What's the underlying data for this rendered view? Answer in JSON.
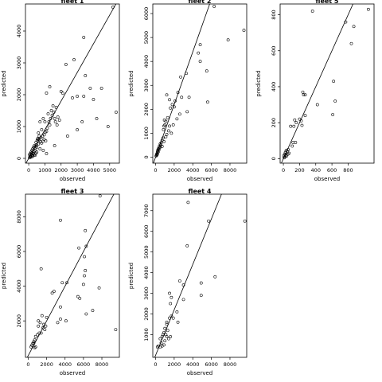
{
  "chart_data": [
    {
      "type": "scatter",
      "title": "fleet 1",
      "xlabel": "observed",
      "ylabel": "predicted",
      "xlim": [
        -200,
        5600
      ],
      "ylim": [
        -150,
        4850
      ],
      "xticks": [
        0,
        1000,
        2000,
        3000,
        4000,
        5000
      ],
      "yticks": [
        0,
        1000,
        2000,
        3000,
        4000
      ],
      "reference_line": {
        "slope": 0.9,
        "intercept": 0
      },
      "points": [
        [
          5200,
          4750
        ],
        [
          3400,
          3800
        ],
        [
          2800,
          3100
        ],
        [
          3500,
          2600
        ],
        [
          2300,
          2950
        ],
        [
          2000,
          2100
        ],
        [
          2100,
          2050
        ],
        [
          3800,
          2200
        ],
        [
          4500,
          2200
        ],
        [
          3000,
          1950
        ],
        [
          4000,
          1850
        ],
        [
          2700,
          1900
        ],
        [
          3400,
          1950
        ],
        [
          1300,
          2250
        ],
        [
          1100,
          2050
        ],
        [
          1500,
          1650
        ],
        [
          1400,
          1500
        ],
        [
          1200,
          1400
        ],
        [
          1800,
          1300
        ],
        [
          1600,
          1250
        ],
        [
          1000,
          1150
        ],
        [
          900,
          1250
        ],
        [
          700,
          1150
        ],
        [
          800,
          900
        ],
        [
          1100,
          850
        ],
        [
          600,
          800
        ],
        [
          1300,
          1050
        ],
        [
          1700,
          1600
        ],
        [
          1900,
          1200
        ],
        [
          3300,
          1150
        ],
        [
          4200,
          1250
        ],
        [
          3000,
          900
        ],
        [
          2400,
          700
        ],
        [
          4900,
          1000
        ],
        [
          5400,
          1450
        ],
        [
          1600,
          400
        ],
        [
          1100,
          150
        ],
        [
          900,
          250
        ],
        [
          700,
          300
        ],
        [
          500,
          200
        ],
        [
          400,
          100
        ],
        [
          300,
          150
        ],
        [
          200,
          100
        ],
        [
          100,
          50
        ],
        [
          50,
          20
        ],
        [
          150,
          200
        ],
        [
          250,
          300
        ],
        [
          350,
          400
        ],
        [
          450,
          500
        ],
        [
          550,
          600
        ],
        [
          650,
          700
        ],
        [
          750,
          650
        ],
        [
          850,
          700
        ],
        [
          950,
          600
        ],
        [
          1050,
          550
        ],
        [
          600,
          450
        ],
        [
          500,
          350
        ],
        [
          400,
          250
        ],
        [
          300,
          350
        ],
        [
          200,
          250
        ],
        [
          100,
          150
        ],
        [
          80,
          80
        ],
        [
          120,
          60
        ],
        [
          180,
          140
        ],
        [
          220,
          180
        ],
        [
          260,
          90
        ],
        [
          320,
          220
        ],
        [
          380,
          330
        ],
        [
          420,
          380
        ],
        [
          480,
          420
        ],
        [
          520,
          560
        ],
        [
          560,
          620
        ],
        [
          640,
          580
        ],
        [
          720,
          520
        ],
        [
          800,
          480
        ],
        [
          880,
          540
        ],
        [
          960,
          740
        ],
        [
          1020,
          820
        ],
        [
          1150,
          950
        ],
        [
          1250,
          1150
        ],
        [
          1350,
          1250
        ],
        [
          1450,
          1350
        ],
        [
          1550,
          1450
        ],
        [
          1650,
          1150
        ],
        [
          1750,
          1050
        ],
        [
          60,
          120
        ],
        [
          140,
          40
        ],
        [
          240,
          60
        ],
        [
          340,
          110
        ],
        [
          440,
          160
        ]
      ]
    },
    {
      "type": "scatter",
      "title": "fleet 2",
      "xlabel": "observed",
      "ylabel": "predicted",
      "xlim": [
        -300,
        9800
      ],
      "ylim": [
        -250,
        6400
      ],
      "xticks": [
        0,
        2000,
        4000,
        6000,
        8000
      ],
      "yticks": [
        0,
        1000,
        2000,
        3000,
        4000,
        5000,
        6000
      ],
      "reference_line": {
        "slope": 1.1,
        "intercept": 0
      },
      "points": [
        [
          6300,
          6300
        ],
        [
          9500,
          5300
        ],
        [
          7800,
          4900
        ],
        [
          4800,
          4700
        ],
        [
          4600,
          4350
        ],
        [
          4800,
          4000
        ],
        [
          5500,
          3600
        ],
        [
          3300,
          3500
        ],
        [
          2700,
          3350
        ],
        [
          2400,
          2700
        ],
        [
          3600,
          2500
        ],
        [
          2800,
          2500
        ],
        [
          2100,
          2350
        ],
        [
          1800,
          2200
        ],
        [
          1500,
          2400
        ],
        [
          1200,
          2600
        ],
        [
          2000,
          2100
        ],
        [
          1600,
          2050
        ],
        [
          3400,
          1900
        ],
        [
          2600,
          1800
        ],
        [
          1300,
          1650
        ],
        [
          1100,
          1500
        ],
        [
          900,
          1300
        ],
        [
          1000,
          1350
        ],
        [
          1500,
          1300
        ],
        [
          1400,
          1100
        ],
        [
          1200,
          950
        ],
        [
          1100,
          850
        ],
        [
          1700,
          1000
        ],
        [
          800,
          800
        ],
        [
          700,
          700
        ],
        [
          900,
          650
        ],
        [
          600,
          600
        ],
        [
          500,
          550
        ],
        [
          700,
          450
        ],
        [
          400,
          450
        ],
        [
          300,
          350
        ],
        [
          250,
          300
        ],
        [
          200,
          200
        ],
        [
          150,
          150
        ],
        [
          100,
          100
        ],
        [
          50,
          50
        ],
        [
          120,
          80
        ],
        [
          180,
          120
        ],
        [
          220,
          250
        ],
        [
          280,
          220
        ],
        [
          350,
          300
        ],
        [
          420,
          380
        ],
        [
          480,
          420
        ],
        [
          550,
          500
        ],
        [
          5600,
          2300
        ],
        [
          2300,
          1600
        ],
        [
          1900,
          1350
        ],
        [
          950,
          1550
        ],
        [
          850,
          1150
        ]
      ]
    },
    {
      "type": "scatter",
      "title": "fleet 5",
      "xlabel": "observed",
      "ylabel": "predicted",
      "xlim": [
        -40,
        1120
      ],
      "ylim": [
        -25,
        860
      ],
      "xticks": [
        0,
        200,
        400,
        600,
        800
      ],
      "yticks": [
        0,
        200,
        400,
        600,
        800
      ],
      "reference_line": {
        "slope": 1.0,
        "intercept": 0
      },
      "points": [
        [
          1050,
          830
        ],
        [
          360,
          820
        ],
        [
          770,
          760
        ],
        [
          870,
          735
        ],
        [
          840,
          640
        ],
        [
          620,
          430
        ],
        [
          640,
          320
        ],
        [
          610,
          245
        ],
        [
          420,
          300
        ],
        [
          240,
          370
        ],
        [
          250,
          355
        ],
        [
          270,
          355
        ],
        [
          220,
          210
        ],
        [
          200,
          220
        ],
        [
          230,
          185
        ],
        [
          270,
          240
        ],
        [
          140,
          215
        ],
        [
          130,
          180
        ],
        [
          160,
          200
        ],
        [
          90,
          180
        ],
        [
          150,
          90
        ],
        [
          120,
          90
        ],
        [
          110,
          70
        ],
        [
          60,
          50
        ],
        [
          50,
          40
        ],
        [
          30,
          20
        ],
        [
          20,
          10
        ],
        [
          10,
          5
        ],
        [
          40,
          15
        ],
        [
          70,
          30
        ],
        [
          25,
          35
        ],
        [
          15,
          25
        ],
        [
          35,
          45
        ],
        [
          5,
          15
        ],
        [
          55,
          25
        ]
      ]
    },
    {
      "type": "scatter",
      "title": "fleet 3",
      "xlabel": "observed",
      "ylabel": "predicted",
      "xlim": [
        -300,
        9900
      ],
      "ylim": [
        -100,
        9300
      ],
      "xticks": [
        0,
        2000,
        4000,
        6000,
        8000
      ],
      "yticks": [
        2000,
        4000,
        6000,
        8000
      ],
      "reference_line": {
        "slope": 1.0,
        "intercept": 0
      },
      "points": [
        [
          7800,
          9200
        ],
        [
          3500,
          7800
        ],
        [
          6200,
          7200
        ],
        [
          6300,
          6300
        ],
        [
          5500,
          6200
        ],
        [
          6100,
          5700
        ],
        [
          6200,
          4900
        ],
        [
          6100,
          4600
        ],
        [
          6000,
          4100
        ],
        [
          7700,
          3900
        ],
        [
          5400,
          3400
        ],
        [
          5600,
          3300
        ],
        [
          4200,
          4200
        ],
        [
          3700,
          4200
        ],
        [
          2800,
          3700
        ],
        [
          2600,
          3600
        ],
        [
          1400,
          5000
        ],
        [
          3500,
          2800
        ],
        [
          7000,
          2600
        ],
        [
          6300,
          2400
        ],
        [
          3500,
          2100
        ],
        [
          4100,
          2000
        ],
        [
          3200,
          1900
        ],
        [
          1500,
          2300
        ],
        [
          1100,
          2000
        ],
        [
          1300,
          1900
        ],
        [
          1700,
          1800
        ],
        [
          1900,
          1700
        ],
        [
          2000,
          2200
        ],
        [
          1600,
          1600
        ],
        [
          1800,
          1500
        ],
        [
          1200,
          1300
        ],
        [
          1000,
          1200
        ],
        [
          800,
          1100
        ],
        [
          700,
          900
        ],
        [
          600,
          800
        ],
        [
          500,
          700
        ],
        [
          400,
          600
        ],
        [
          300,
          500
        ],
        [
          800,
          500
        ],
        [
          700,
          450
        ],
        [
          600,
          700
        ],
        [
          9500,
          1500
        ],
        [
          1100,
          1700
        ],
        [
          1400,
          1300
        ]
      ]
    },
    {
      "type": "scatter",
      "title": "fleet 4",
      "xlabel": "observed",
      "ylabel": "predicted",
      "xlim": [
        -300,
        9800
      ],
      "ylim": [
        -100,
        7800
      ],
      "xticks": [
        0,
        2000,
        4000,
        6000,
        8000
      ],
      "yticks": [
        1000,
        2000,
        3000,
        4000,
        5000,
        6000,
        7000
      ],
      "reference_line": {
        "slope": 1.1,
        "intercept": 0
      },
      "points": [
        [
          3500,
          7400
        ],
        [
          5700,
          6500
        ],
        [
          9600,
          6500
        ],
        [
          3400,
          5300
        ],
        [
          6400,
          3800
        ],
        [
          4900,
          3500
        ],
        [
          3000,
          3400
        ],
        [
          2600,
          3600
        ],
        [
          1500,
          3000
        ],
        [
          1700,
          2800
        ],
        [
          1600,
          2500
        ],
        [
          2300,
          2100
        ],
        [
          4900,
          2900
        ],
        [
          3000,
          2700
        ],
        [
          1700,
          1900
        ],
        [
          1900,
          1800
        ],
        [
          1500,
          1800
        ],
        [
          1200,
          1600
        ],
        [
          2400,
          1600
        ],
        [
          1200,
          1500
        ],
        [
          1000,
          1300
        ],
        [
          900,
          1100
        ],
        [
          1300,
          1200
        ],
        [
          800,
          1000
        ],
        [
          700,
          900
        ],
        [
          1100,
          1000
        ],
        [
          1600,
          900
        ],
        [
          1400,
          800
        ],
        [
          1200,
          900
        ],
        [
          500,
          800
        ],
        [
          1000,
          700
        ],
        [
          600,
          600
        ],
        [
          300,
          450
        ],
        [
          200,
          400
        ],
        [
          500,
          400
        ],
        [
          700,
          450
        ],
        [
          900,
          500
        ]
      ]
    }
  ]
}
